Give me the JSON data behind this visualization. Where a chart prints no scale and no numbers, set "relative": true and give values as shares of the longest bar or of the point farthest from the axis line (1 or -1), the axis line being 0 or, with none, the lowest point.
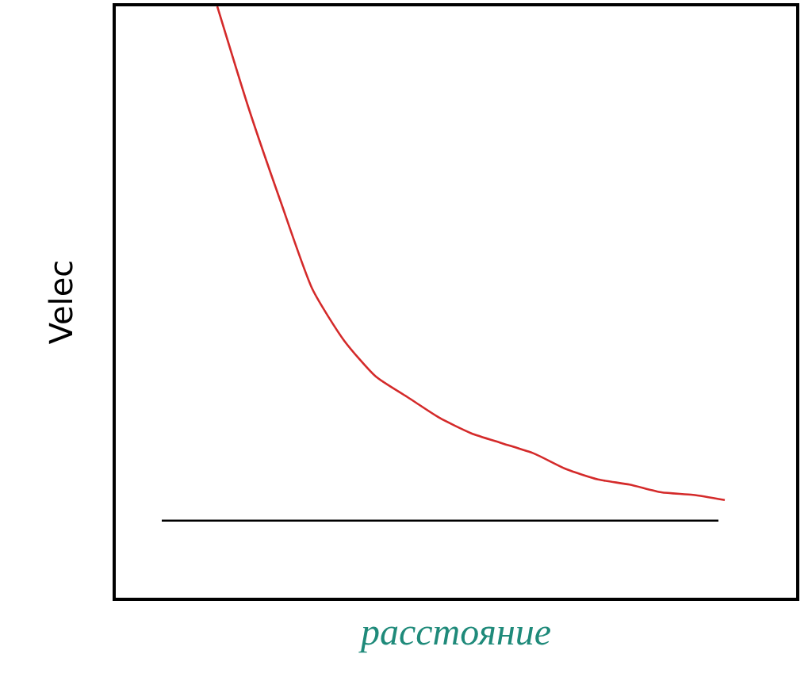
{
  "chart_data": {
    "type": "line",
    "relative": true,
    "xlabel": "расстояние",
    "ylabel": "Velec",
    "categories": [
      null,
      null,
      null,
      null,
      null,
      null,
      null,
      null,
      null,
      null,
      null,
      null,
      null,
      null,
      null,
      null,
      null
    ],
    "series": [
      {
        "color": "#d42a2a",
        "values": [
          1.0,
          0.8,
          0.62,
          0.45,
          0.35,
          0.28,
          0.24,
          0.2,
          0.17,
          0.15,
          0.13,
          0.1,
          0.08,
          0.07,
          0.055,
          0.05,
          0.04
        ]
      }
    ],
    "ref_lines": [
      {
        "axis": "y",
        "value": 0,
        "color": "#000000"
      }
    ],
    "legend": false,
    "marker": "none",
    "line_style": "solid",
    "tick_labels": false
  }
}
